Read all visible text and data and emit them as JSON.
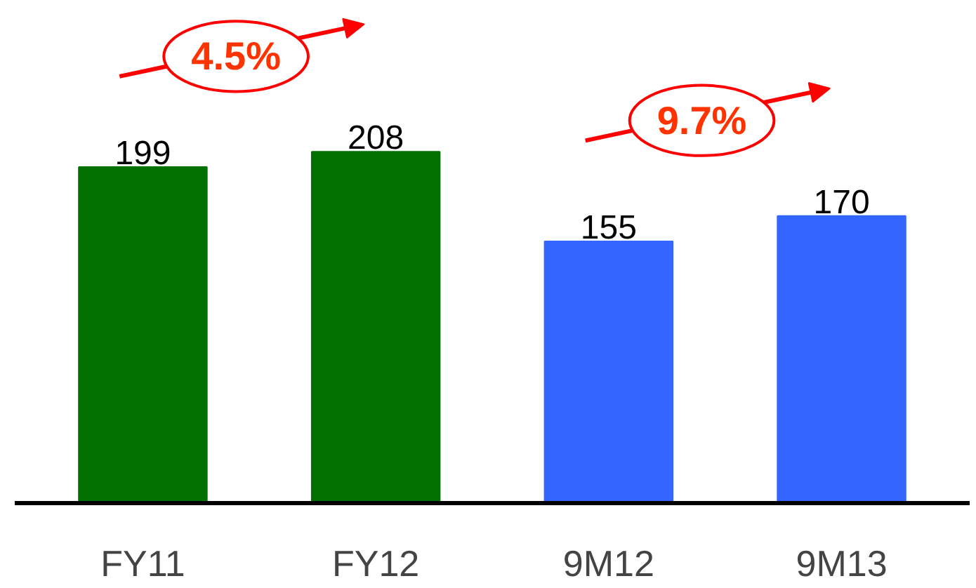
{
  "chart_data": {
    "type": "bar",
    "categories": [
      "FY11",
      "FY12",
      "9M12",
      "9M13"
    ],
    "values": [
      199,
      208,
      155,
      170
    ],
    "colors": [
      "#007000",
      "#007000",
      "#3366ff",
      "#3366ff"
    ],
    "data_labels": true,
    "annotations": [
      "4.5%",
      "9.7%"
    ]
  }
}
